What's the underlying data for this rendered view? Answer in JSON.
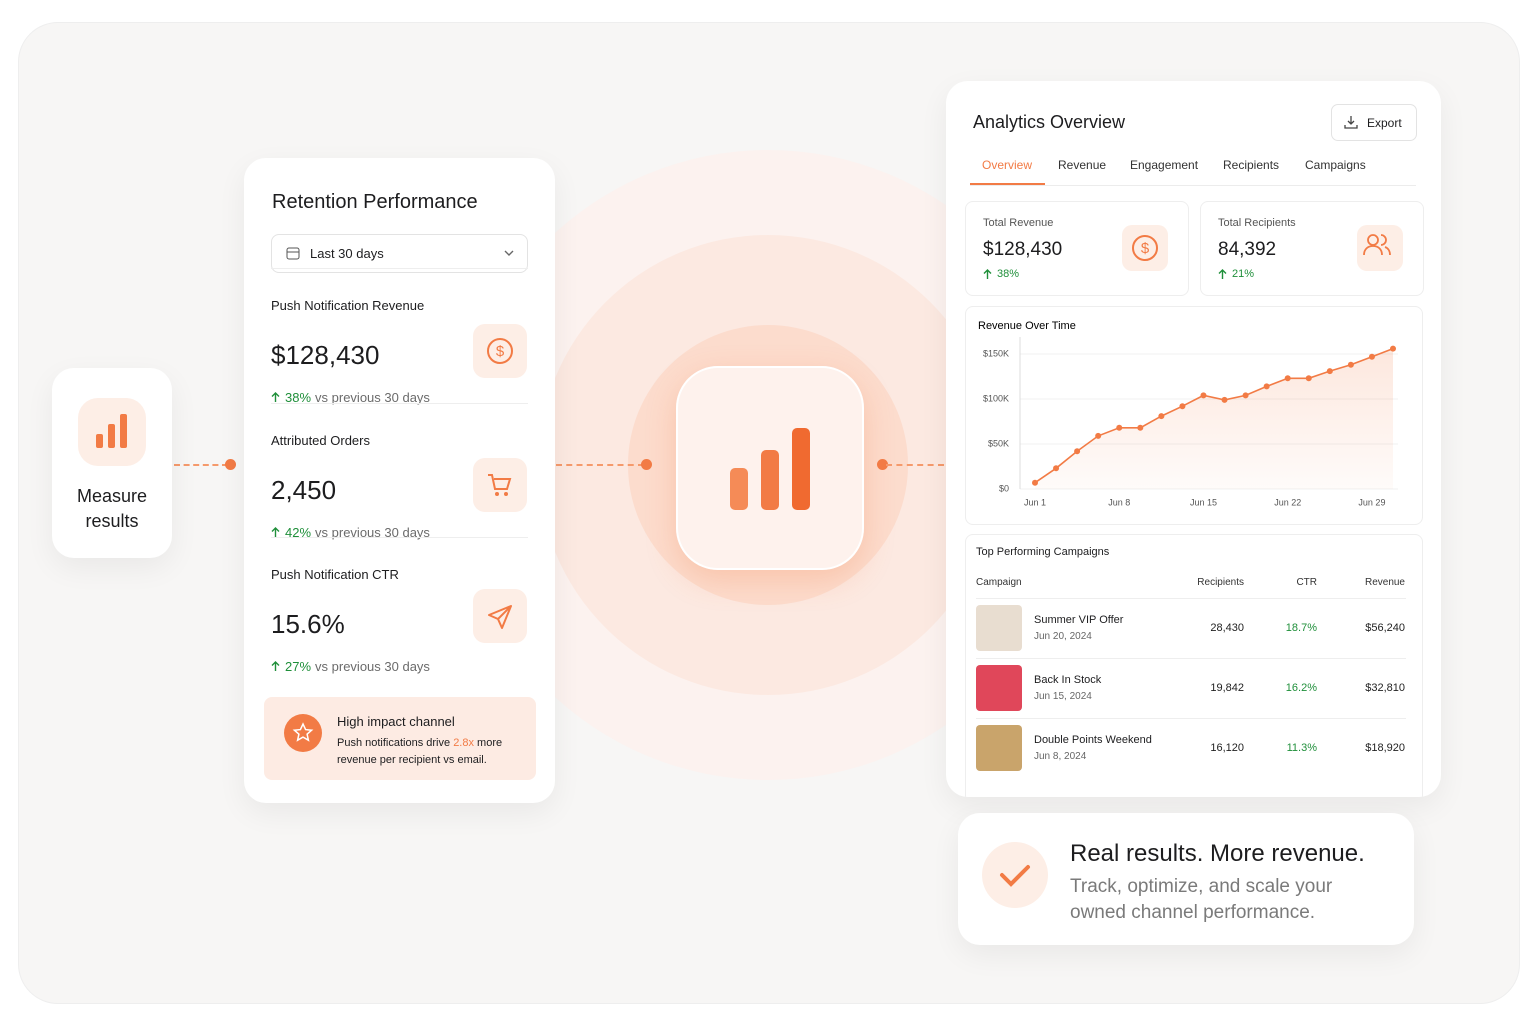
{
  "measure": {
    "label": "Measure results"
  },
  "retention": {
    "title": "Retention Performance",
    "range": "Last 30 days",
    "metrics": [
      {
        "label": "Push Notification Revenue",
        "value": "$128,430",
        "change": "38%",
        "compare": "vs previous 30 days"
      },
      {
        "label": "Attributed Orders",
        "value": "2,450",
        "change": "42%",
        "compare": "vs previous 30 days"
      },
      {
        "label": "Push Notification CTR",
        "value": "15.6%",
        "change": "27%",
        "compare": "vs previous 30 days"
      }
    ],
    "highlight": {
      "title": "High impact channel",
      "text_before": "Push notifications drive",
      "emphasis": "2.8x",
      "text_after": "more revenue per recipient vs email."
    }
  },
  "analytics": {
    "title": "Analytics Overview",
    "export": "Export",
    "tabs": [
      "Overview",
      "Revenue",
      "Engagement",
      "Recipients",
      "Campaigns"
    ],
    "active_tab": 0,
    "stats": [
      {
        "label": "Total Revenue",
        "value": "$128,430",
        "change": "38%"
      },
      {
        "label": "Total Recipients",
        "value": "84,392",
        "change": "21%"
      }
    ],
    "table": {
      "title": "Top Performing Campaigns",
      "headers": [
        "Campaign",
        "Recipients",
        "CTR",
        "Revenue"
      ],
      "rows": [
        {
          "name": "Summer VIP Offer",
          "date": "Jun 20, 2024",
          "recipients": "28,430",
          "ctr": "18.7%",
          "revenue": "$56,240"
        },
        {
          "name": "Back In Stock",
          "date": "Jun 15, 2024",
          "recipients": "19,842",
          "ctr": "16.2%",
          "revenue": "$32,810"
        },
        {
          "name": "Double Points Weekend",
          "date": "Jun 8, 2024",
          "recipients": "16,120",
          "ctr": "11.3%",
          "revenue": "$18,920"
        }
      ]
    }
  },
  "chart_data": {
    "type": "line",
    "title": "Revenue Over Time",
    "color": "#f27b45",
    "categories": [
      "Jun 1",
      null,
      null,
      null,
      "Jun 8",
      null,
      null,
      null,
      "Jun 15",
      null,
      null,
      null,
      "Jun 22",
      null,
      null,
      null,
      "Jun 29",
      null
    ],
    "values": [
      7000,
      23000,
      42000,
      59000,
      68000,
      68000,
      81000,
      92000,
      104000,
      99000,
      104000,
      114000,
      123000,
      123000,
      131000,
      138000,
      147000,
      156000
    ],
    "ylim": [
      0,
      160000
    ],
    "yticks": [
      {
        "value": 0,
        "label": "$0"
      },
      {
        "value": 50000,
        "label": "$50K"
      },
      {
        "value": 100000,
        "label": "$100K"
      },
      {
        "value": 150000,
        "label": "$150K"
      }
    ]
  },
  "footer": {
    "title": "Real results. More revenue.",
    "text": "Track, optimize, and scale your owned channel performance."
  }
}
